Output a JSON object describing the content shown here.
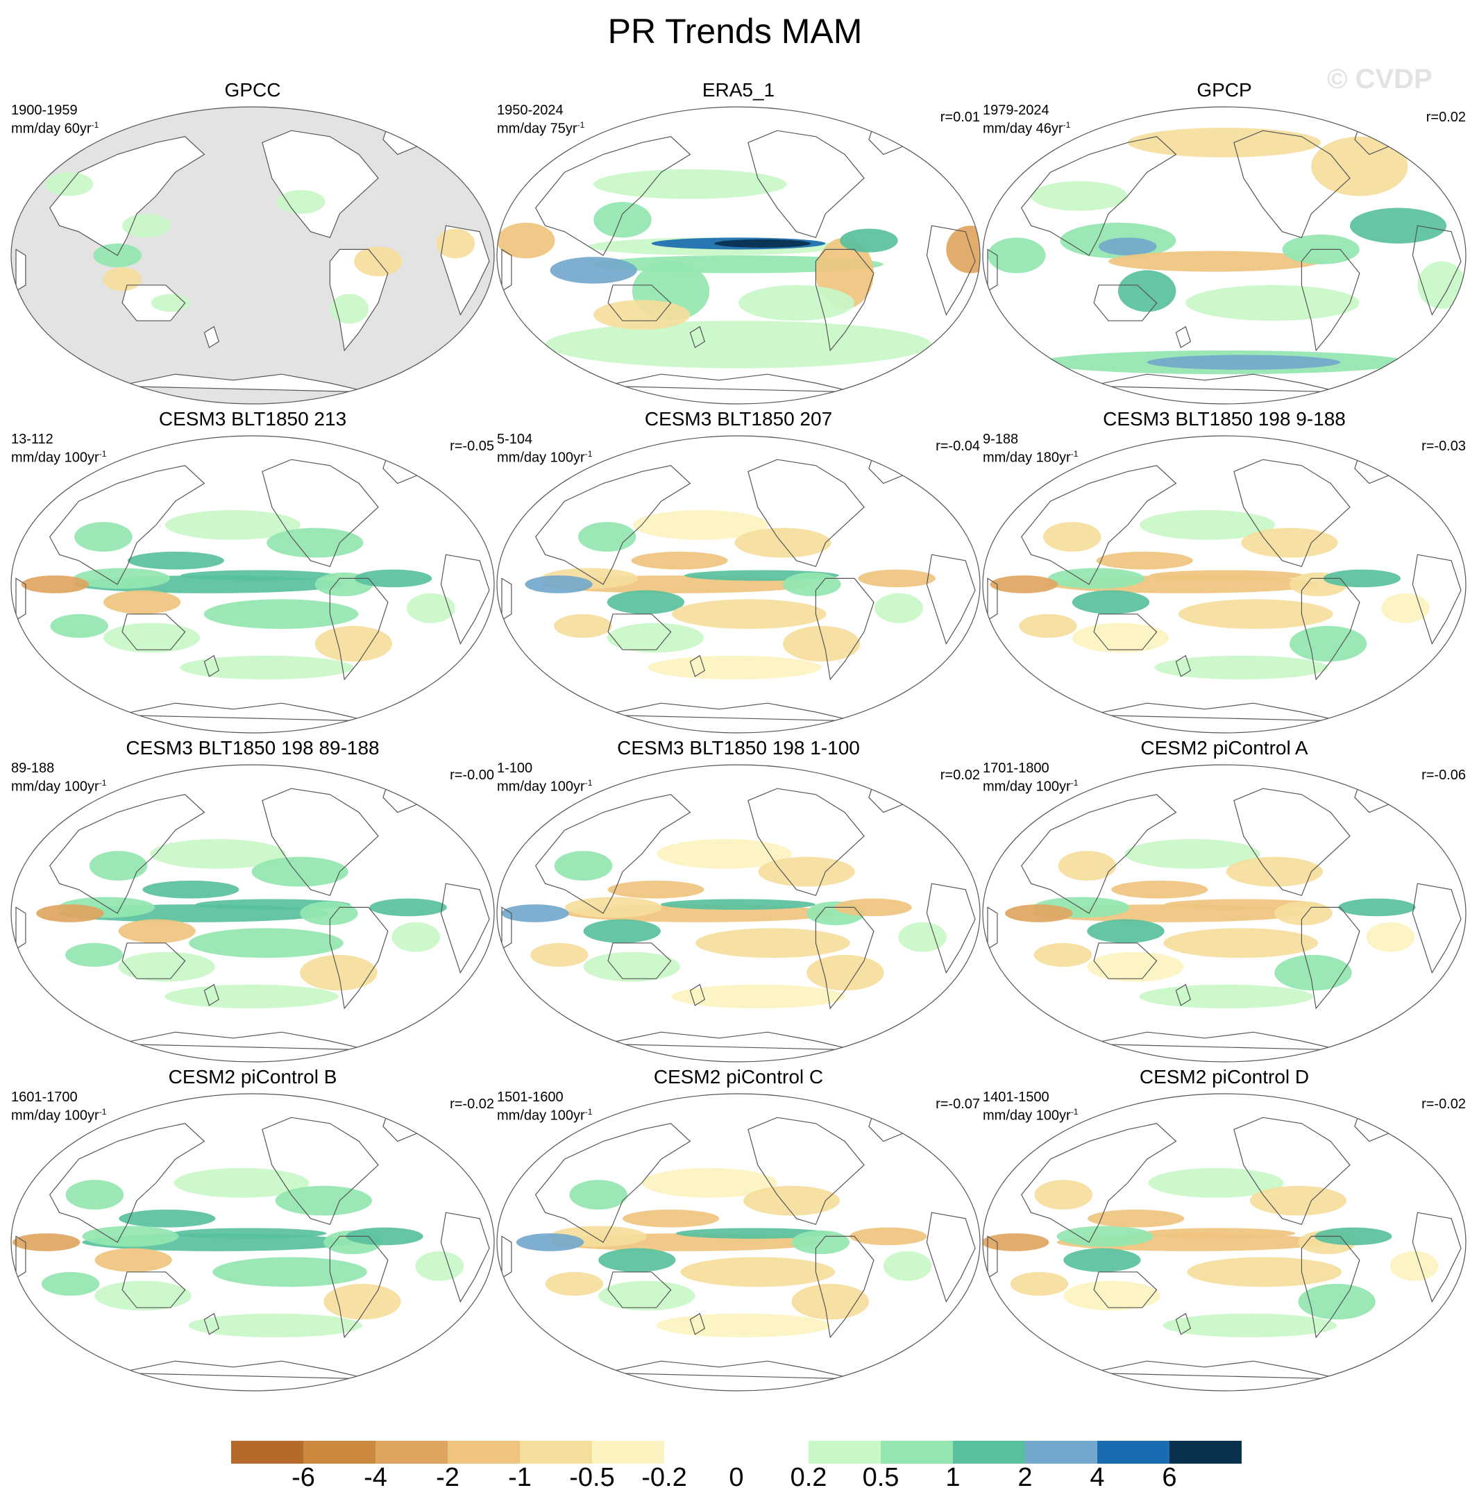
{
  "title": "PR Trends MAM",
  "watermark": "© CVDP",
  "panels": [
    {
      "title": "GPCC",
      "years": "1900-1959",
      "units_prefix": "mm/day 60yr",
      "units_exp": "-1",
      "r": "",
      "style": "gpcc"
    },
    {
      "title": "ERA5_1",
      "years": "1950-2024",
      "units_prefix": "mm/day 75yr",
      "units_exp": "-1",
      "r": "r=0.01",
      "style": "era5"
    },
    {
      "title": "GPCP",
      "years": "1979-2024",
      "units_prefix": "mm/day 46yr",
      "units_exp": "-1",
      "r": "r=0.02",
      "style": "gpcp"
    },
    {
      "title": "CESM3 BLT1850 213",
      "years": "13-112",
      "units_prefix": "mm/day 100yr",
      "units_exp": "-1",
      "r": "r=-0.05",
      "style": "model"
    },
    {
      "title": "CESM3 BLT1850 207",
      "years": "5-104",
      "units_prefix": "mm/day 100yr",
      "units_exp": "-1",
      "r": "r=-0.04",
      "style": "model"
    },
    {
      "title": "CESM3 BLT1850 198 9-188",
      "years": "9-188",
      "units_prefix": "mm/day 180yr",
      "units_exp": "-1",
      "r": "r=-0.03",
      "style": "model"
    },
    {
      "title": "CESM3 BLT1850 198 89-188",
      "years": "89-188",
      "units_prefix": "mm/day 100yr",
      "units_exp": "-1",
      "r": "r=-0.00",
      "style": "model"
    },
    {
      "title": "CESM3 BLT1850 198 1-100",
      "years": "1-100",
      "units_prefix": "mm/day 100yr",
      "units_exp": "-1",
      "r": "r=0.02",
      "style": "model"
    },
    {
      "title": "CESM2 piControl A",
      "years": "1701-1800",
      "units_prefix": "mm/day 100yr",
      "units_exp": "-1",
      "r": "r=-0.06",
      "style": "model"
    },
    {
      "title": "CESM2 piControl B",
      "years": "1601-1700",
      "units_prefix": "mm/day 100yr",
      "units_exp": "-1",
      "r": "r=-0.02",
      "style": "model"
    },
    {
      "title": "CESM2 piControl C",
      "years": "1501-1600",
      "units_prefix": "mm/day 100yr",
      "units_exp": "-1",
      "r": "r=-0.07",
      "style": "model"
    },
    {
      "title": "CESM2 piControl D",
      "years": "1401-1500",
      "units_prefix": "mm/day 100yr",
      "units_exp": "-1",
      "r": "r=-0.02",
      "style": "model"
    }
  ],
  "colorbar": {
    "colors": [
      "#b5692a",
      "#cc883f",
      "#dfa560",
      "#efc47f",
      "#f5dd9c",
      "#fdf3c0",
      "#ffffff",
      "#ffffff",
      "#c8f7c8",
      "#93e6b0",
      "#58c09d",
      "#73a8cc",
      "#1a6bb0",
      "#08304f"
    ],
    "labels": [
      "-6",
      "-4",
      "-2",
      "-1",
      "-0.5",
      "-0.2",
      "0",
      "0.2",
      "0.5",
      "1",
      "2",
      "4",
      "6"
    ]
  }
}
